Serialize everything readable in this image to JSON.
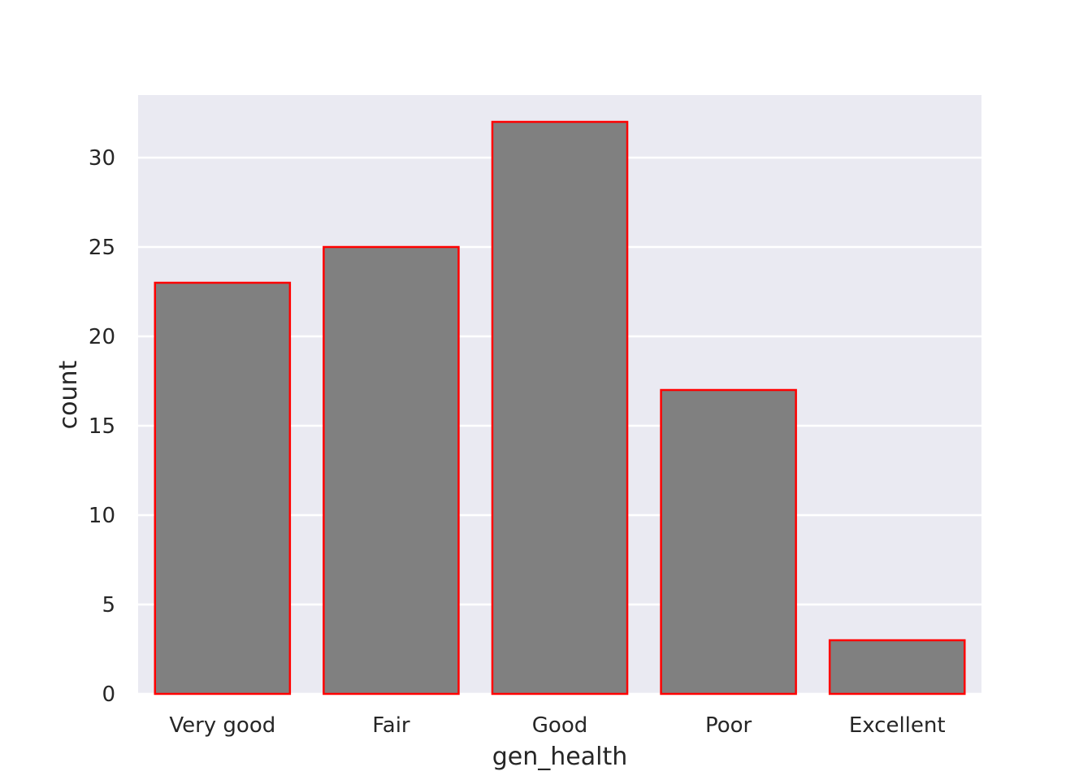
{
  "chart_data": {
    "type": "bar",
    "title": "",
    "xlabel": "gen_health",
    "ylabel": "count",
    "categories": [
      "Very good",
      "Fair",
      "Good",
      "Poor",
      "Excellent"
    ],
    "values": [
      23,
      25,
      32,
      17,
      3
    ],
    "ylim": [
      0,
      33.5
    ],
    "yticks": [
      0,
      5,
      10,
      15,
      20,
      25,
      30
    ],
    "grid": true,
    "grid_axis": "y",
    "legend": "none"
  },
  "colors": {
    "plot_background": "#eaeaf2",
    "grid": "#ffffff",
    "bar_fill": "#808080",
    "bar_edge": "#ff0000",
    "text": "#262626"
  }
}
